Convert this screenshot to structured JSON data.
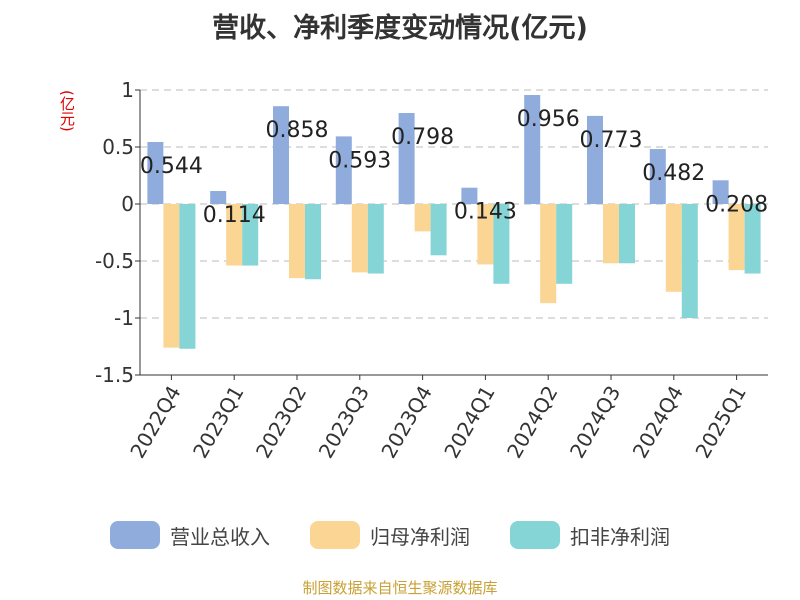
{
  "chart_data": {
    "type": "bar",
    "title": "营收、净利季度变动情况(亿元)",
    "unit_label": "(亿元)",
    "categories": [
      "2022Q4",
      "2023Q1",
      "2023Q2",
      "2023Q3",
      "2023Q4",
      "2024Q1",
      "2024Q2",
      "2024Q3",
      "2024Q4",
      "2025Q1"
    ],
    "series": [
      {
        "name": "营业总收入",
        "color": "#8facdc",
        "values": [
          0.544,
          0.114,
          0.858,
          0.593,
          0.798,
          0.143,
          0.956,
          0.773,
          0.482,
          0.208
        ],
        "labels_shown": true
      },
      {
        "name": "归母净利润",
        "color": "#fbd594",
        "values": [
          -1.26,
          -0.54,
          -0.65,
          -0.6,
          -0.24,
          -0.53,
          -0.87,
          -0.52,
          -0.77,
          -0.58
        ],
        "labels_shown": false
      },
      {
        "name": "扣非净利润",
        "color": "#85d5d6",
        "values": [
          -1.27,
          -0.54,
          -0.66,
          -0.61,
          -0.45,
          -0.7,
          -0.7,
          -0.52,
          -1.0,
          -0.61
        ],
        "labels_shown": false
      }
    ],
    "yticks": [
      1,
      0.5,
      0,
      -0.5,
      -1,
      -1.5
    ],
    "ytick_labels": [
      "1",
      "0.5",
      "0",
      "-0.5",
      "-1",
      "-1.5"
    ],
    "ylim": [
      -1.5,
      1
    ],
    "grid": true,
    "legend_position": "bottom"
  },
  "legend": {
    "items": [
      {
        "label": "营业总收入",
        "color": "#8facdc"
      },
      {
        "label": "归母净利润",
        "color": "#fbd594"
      },
      {
        "label": "扣非净利润",
        "color": "#85d5d6"
      }
    ]
  },
  "source": "制图数据来自恒生聚源数据库"
}
